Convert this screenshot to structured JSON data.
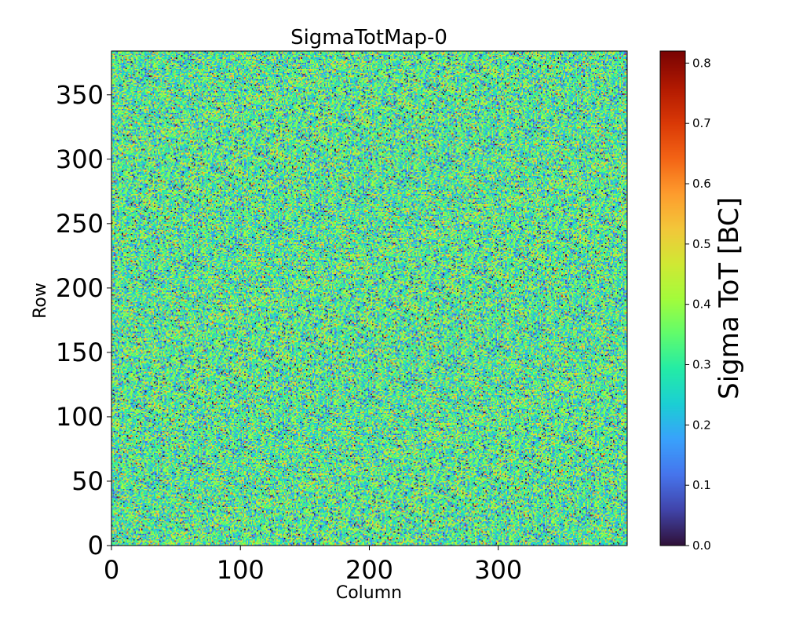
{
  "chart_data": {
    "type": "heatmap",
    "title": "SigmaTotMap-0",
    "xlabel": "Column",
    "ylabel": "Row",
    "xlim": [
      0,
      400
    ],
    "ylim": [
      0,
      384
    ],
    "x_ticks": [
      0,
      100,
      200,
      300
    ],
    "y_ticks": [
      0,
      50,
      100,
      150,
      200,
      250,
      300,
      350
    ],
    "grid": false,
    "colormap": "turbo",
    "colorbar": {
      "label": "Sigma ToT [BC]",
      "vmin": 0.0,
      "vmax": 0.82,
      "ticks": [
        "0.0",
        "0.1",
        "0.2",
        "0.3",
        "0.4",
        "0.5",
        "0.6",
        "0.7",
        "0.8"
      ]
    },
    "value_distribution": {
      "description": "per-pixel noise map, values mostly between 0.0 and 0.5",
      "mean": 0.31,
      "std": 0.13,
      "min": 0.0,
      "max": 0.82
    },
    "colors": {
      "turbo_stops": [
        "#30123b",
        "#4145ab",
        "#4675ed",
        "#39a2fc",
        "#1bcfd4",
        "#24eca6",
        "#61fc6c",
        "#a4fc3b",
        "#d1e834",
        "#f3c63a",
        "#fe9b2d",
        "#f36315",
        "#d93806",
        "#b11901",
        "#7a0403"
      ]
    }
  }
}
